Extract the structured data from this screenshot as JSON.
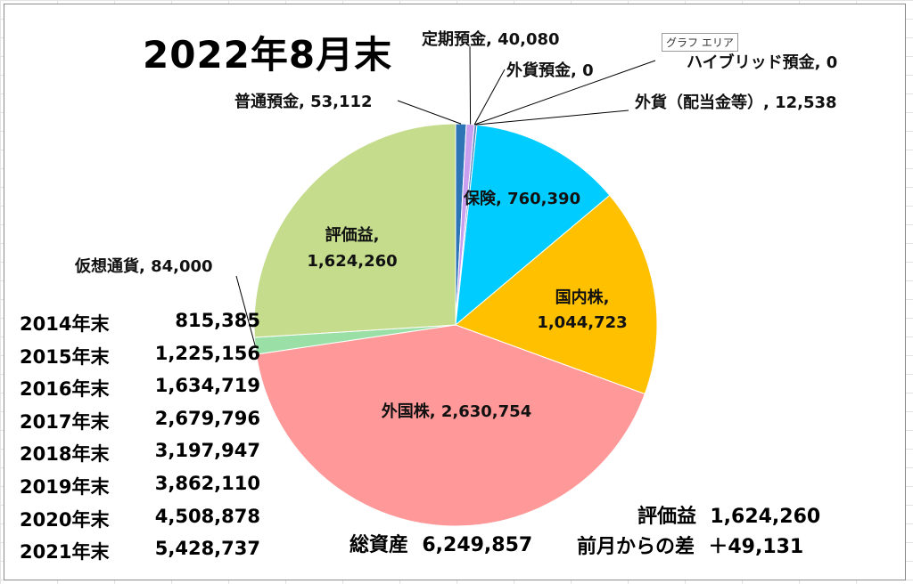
{
  "chart_data": {
    "type": "pie",
    "title": "2022年8月末",
    "series": [
      {
        "name": "普通預金",
        "value": 53112,
        "display": "53,112",
        "color": "#2E75B6"
      },
      {
        "name": "定期預金",
        "value": 40080,
        "display": "40,080",
        "color": "#C9A0F0"
      },
      {
        "name": "外貨預金",
        "value": 0,
        "display": "0",
        "color": "#A6A6A6"
      },
      {
        "name": "ハイブリッド預金",
        "value": 0,
        "display": "0",
        "color": "#70AD47"
      },
      {
        "name": "外貨（配当金等）",
        "value": 12538,
        "display": "12,538",
        "color": "#4F81BD"
      },
      {
        "name": "保険",
        "value": 760390,
        "display": "760,390",
        "color": "#00CCFF"
      },
      {
        "name": "国内株",
        "value": 1044723,
        "display": "1,044,723",
        "color": "#FFC000"
      },
      {
        "name": "外国株",
        "value": 2630754,
        "display": "2,630,754",
        "color": "#FF9999"
      },
      {
        "name": "仮想通貨",
        "value": 84000,
        "display": "84,000",
        "color": "#99DFA6"
      },
      {
        "name": "評価益",
        "value": 1624260,
        "display": "1,624,260",
        "color": "#C4DC8C"
      }
    ]
  },
  "labels": {
    "futsu": "普通預金, 53,112",
    "teiki": "定期預金, 40,080",
    "gaika_yokin": "外貨預金, 0",
    "hybrid": "ハイブリッド預金, 0",
    "gaika_haito": "外貨（配当金等）, 12,538",
    "hoken": "保険, 760,390",
    "kokunai_1": "国内株,",
    "kokunai_2": "1,044,723",
    "gaikoku": "外国株, 2,630,754",
    "kaso": "仮想通貨, 84,000",
    "hyoka_1": "評価益,",
    "hyoka_2": "1,624,260"
  },
  "area_tooltip": "グラフ エリア",
  "year_end_totals": [
    {
      "label": "2014年末",
      "value": "815,385"
    },
    {
      "label": "2015年末",
      "value": "1,225,156"
    },
    {
      "label": "2016年末",
      "value": "1,634,719"
    },
    {
      "label": "2017年末",
      "value": "2,679,796"
    },
    {
      "label": "2018年末",
      "value": "3,197,947"
    },
    {
      "label": "2019年末",
      "value": "3,862,110"
    },
    {
      "label": "2020年末",
      "value": "4,508,878"
    },
    {
      "label": "2021年末",
      "value": "5,428,737"
    }
  ],
  "summary": {
    "total_label": "総資産",
    "total_value": "6,249,857",
    "eval_label": "評価益",
    "eval_value": "1,624,260",
    "diff_label": "前月からの差",
    "diff_value": "＋49,131"
  }
}
